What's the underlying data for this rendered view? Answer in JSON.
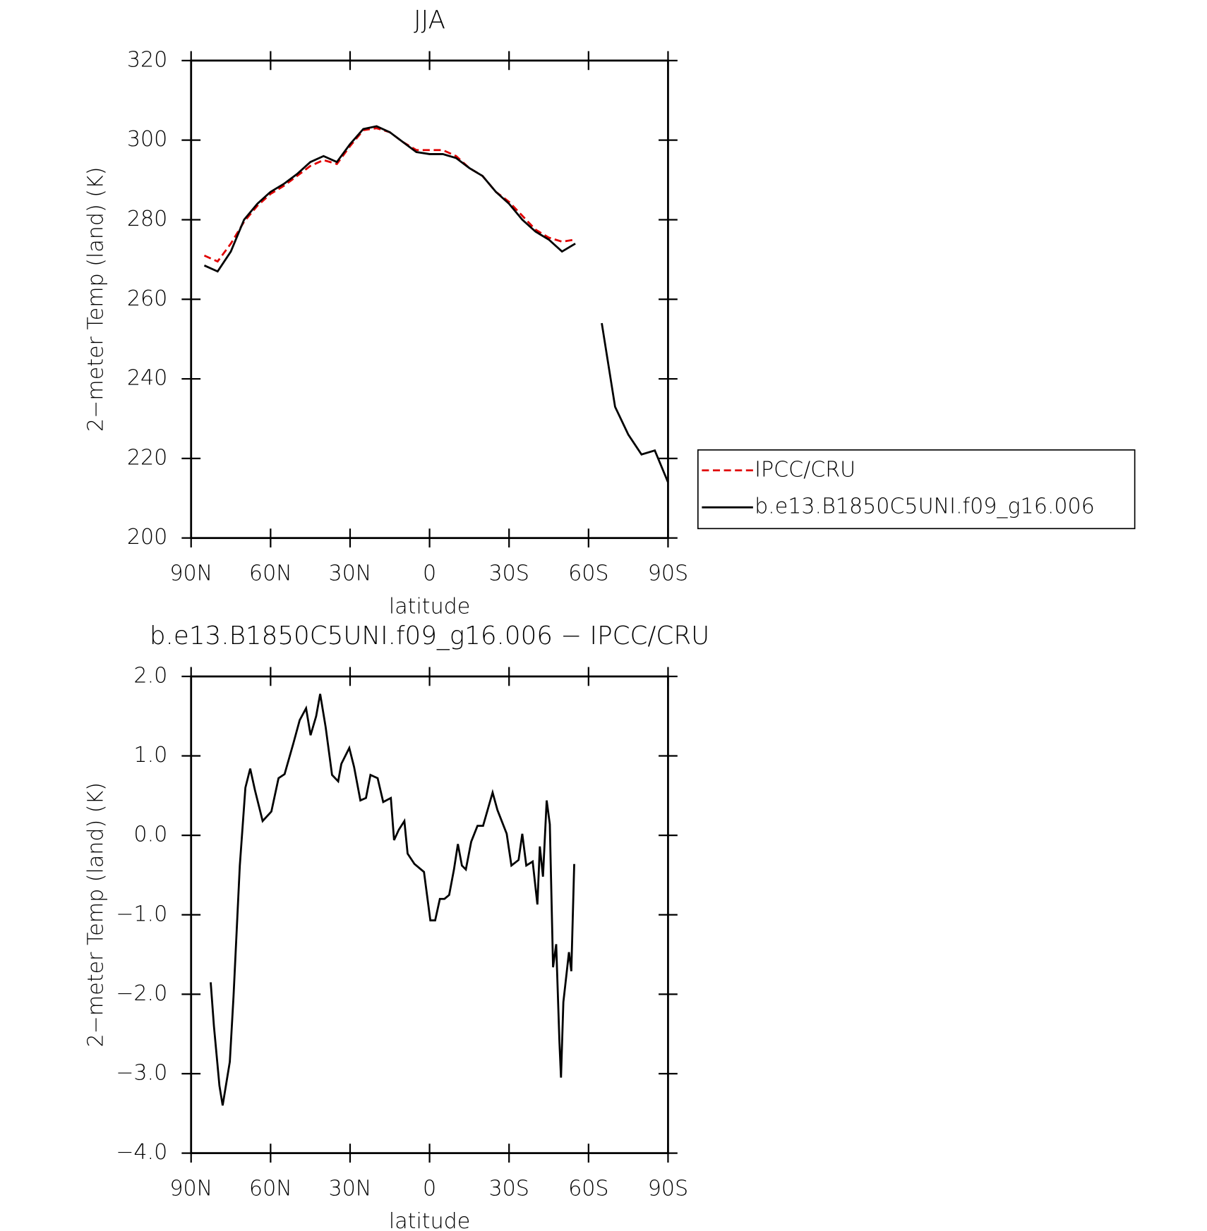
{
  "chart_data": [
    {
      "type": "line",
      "title": "JJA",
      "xlabel": "latitude",
      "ylabel": "2−meter Temp (land) (K)",
      "x": [
        85,
        80,
        75,
        70,
        65,
        60,
        55,
        50,
        45,
        40,
        35,
        30,
        25,
        20,
        15,
        10,
        5,
        0,
        -5,
        -10,
        -15,
        -20,
        -25,
        -30,
        -35,
        -40,
        -45,
        -50,
        -55,
        -60,
        -65,
        -70,
        -75,
        -80,
        -85,
        -90
      ],
      "series": [
        {
          "name": "IPCC/CRU",
          "color": "#e00000",
          "line_style": "dashed",
          "values": [
            271,
            269.5,
            274,
            279.5,
            283.5,
            286.5,
            288.5,
            291,
            293.5,
            295,
            294,
            298.5,
            302.5,
            303,
            302,
            299.5,
            297.5,
            297.5,
            297.5,
            296,
            293,
            291,
            287,
            284.5,
            281,
            277.5,
            275.5,
            274.5,
            275,
            null,
            null,
            null,
            null,
            null,
            null,
            null
          ]
        },
        {
          "name": "b.e13.B1850C5UNI.f09_g16.006",
          "color": "#000000",
          "line_style": "solid",
          "values": [
            268.5,
            267,
            272,
            280,
            284,
            287,
            289,
            291.5,
            294.5,
            296,
            294.5,
            299,
            302.8,
            303.5,
            302,
            299.5,
            297,
            296.5,
            296.5,
            295.5,
            293,
            291,
            287,
            284,
            280,
            277,
            275,
            272,
            274,
            null,
            254,
            233,
            226,
            221,
            222,
            214
          ]
        }
      ],
      "xlim": [
        90,
        -90
      ],
      "xticks": [
        {
          "value": 90,
          "label": "90N"
        },
        {
          "value": 60,
          "label": "60N"
        },
        {
          "value": 30,
          "label": "30N"
        },
        0,
        {
          "value": -30,
          "label": "30S"
        },
        {
          "value": -60,
          "label": "60S"
        },
        {
          "value": -90,
          "label": "90S"
        }
      ],
      "ylim": [
        200,
        320
      ],
      "yticks": [
        200,
        220,
        240,
        260,
        280,
        300,
        320
      ],
      "legend": "right"
    },
    {
      "type": "line",
      "title": "b.e13.B1850C5UNI.f09_g16.006 − IPCC/CRU",
      "xlabel": "latitude",
      "ylabel": "2−meter Temp (land) (K)",
      "x": [
        82.6,
        81.4,
        79.3,
        78.1,
        75.4,
        74,
        71.6,
        69.5,
        67.7,
        65.9,
        63,
        59.7,
        57,
        54.7,
        51.4,
        49,
        46.6,
        44.9,
        42.8,
        41.3,
        39.2,
        36.8,
        34.5,
        33.3,
        30.3,
        28.5,
        26.1,
        24,
        22.3,
        19.6,
        17.5,
        14.6,
        13.4,
        11.6,
        9.5,
        8.3,
        5.7,
        2.1,
        -0.3,
        -2.1,
        -3.9,
        -5.6,
        -7.4,
        -9.2,
        -10.7,
        -12.2,
        -13.7,
        -15.7,
        -18.1,
        -20.2,
        -23.8,
        -25.6,
        -29.1,
        -30.9,
        -33.6,
        -35,
        -36.5,
        -38.9,
        -40.7,
        -41.6,
        -42.8,
        -44.2,
        -45.4,
        -46.6,
        -47.8,
        -49,
        -49.6,
        -50.5,
        -52.6,
        -53.5,
        -54.6
      ],
      "series": [
        {
          "color": "#000000",
          "line_style": "solid",
          "values": [
            -1.85,
            -2.4,
            -3.15,
            -3.4,
            -2.85,
            -2.03,
            -0.38,
            0.6,
            0.84,
            0.57,
            0.18,
            0.3,
            0.72,
            0.77,
            1.16,
            1.45,
            1.6,
            1.26,
            1.5,
            1.78,
            1.36,
            0.76,
            0.68,
            0.9,
            1.1,
            0.86,
            0.44,
            0.47,
            0.76,
            0.72,
            0.42,
            0.47,
            -0.06,
            0.07,
            0.18,
            -0.23,
            -0.36,
            -0.46,
            -1.07,
            -1.07,
            -0.8,
            -0.8,
            -0.75,
            -0.43,
            -0.11,
            -0.38,
            -0.43,
            -0.08,
            0.12,
            0.12,
            0.54,
            0.32,
            0.02,
            -0.38,
            -0.31,
            0.02,
            -0.38,
            -0.33,
            -0.87,
            -0.14,
            -0.52,
            0.44,
            0.14,
            -1.66,
            -1.37,
            -2.6,
            -3.05,
            -2.1,
            -1.47,
            -1.71,
            -0.36
          ]
        }
      ],
      "xlim": [
        90,
        -90
      ],
      "xticks": [
        {
          "value": 90,
          "label": "90N"
        },
        {
          "value": 60,
          "label": "60N"
        },
        {
          "value": 30,
          "label": "30N"
        },
        0,
        {
          "value": -30,
          "label": "30S"
        },
        {
          "value": -60,
          "label": "60S"
        },
        {
          "value": -90,
          "label": "90S"
        }
      ],
      "ylim": [
        -4,
        2
      ],
      "yticks": [
        {
          "value": -4,
          "label": "−4.0"
        },
        {
          "value": -3,
          "label": "−3.0"
        },
        {
          "value": -2,
          "label": "−2.0"
        },
        {
          "value": -1,
          "label": "−1.0"
        },
        {
          "value": 0,
          "label": "0.0"
        },
        {
          "value": 1,
          "label": "1.0"
        },
        {
          "value": 2,
          "label": "2.0"
        }
      ]
    }
  ]
}
